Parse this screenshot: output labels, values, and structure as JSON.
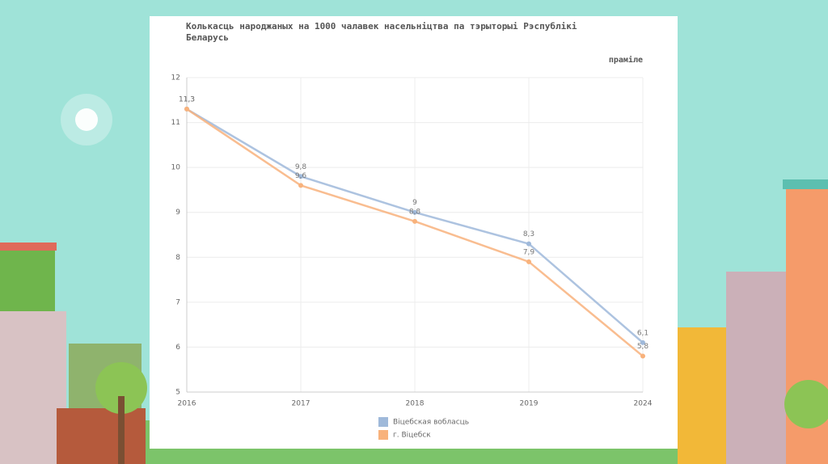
{
  "chart_data": {
    "type": "line",
    "title": "Колькасць народжаных на 1000 чалавек насельніцтва па тэрыторыі Рэспублікі Беларусь",
    "y_label": "праміле",
    "categories": [
      "2016",
      "2017",
      "2018",
      "2019",
      "2024"
    ],
    "series": [
      {
        "name": "Віцебская вобласць",
        "color": "#9fb9da",
        "values": [
          11.3,
          9.8,
          9,
          8.3,
          6.1
        ],
        "value_labels": [
          "11,3",
          "9,8",
          "9",
          "8,3",
          "6,1"
        ]
      },
      {
        "name": "г. Віцебск",
        "color": "#f8b27c",
        "values": [
          11.3,
          9.6,
          8.8,
          7.9,
          5.8
        ],
        "value_labels": [
          "11,3",
          "9,6",
          "8,8",
          "7,9",
          "5,8"
        ]
      }
    ],
    "ylim": [
      5,
      12
    ],
    "yticks": [
      5,
      6,
      7,
      8,
      9,
      10,
      11,
      12
    ],
    "grid": true,
    "legend": "bottom"
  }
}
